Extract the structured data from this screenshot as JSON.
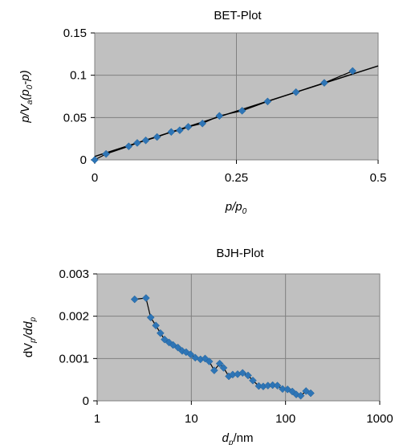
{
  "chart_data": [
    {
      "type": "scatter",
      "title": "BET-Plot",
      "xlabel": "p/p0",
      "ylabel": "p/Va(p0-p)",
      "xlim": [
        0,
        0.5
      ],
      "ylim": [
        0,
        0.15
      ],
      "xticks": [
        "0",
        "0.25",
        "0.5"
      ],
      "yticks": [
        "0",
        "0.05",
        "0.1",
        "0.15"
      ],
      "grid": true,
      "background": "#c0c0c0",
      "marker_color": "#2e75b6",
      "series": [
        {
          "x": [
            0.0,
            0.02,
            0.06,
            0.075,
            0.09,
            0.11,
            0.135,
            0.15,
            0.165,
            0.19,
            0.22,
            0.26,
            0.305,
            0.355,
            0.405,
            0.455
          ],
          "y": [
            0.0,
            0.007,
            0.016,
            0.02,
            0.023,
            0.027,
            0.033,
            0.035,
            0.039,
            0.043,
            0.052,
            0.058,
            0.069,
            0.08,
            0.091,
            0.105
          ]
        }
      ],
      "fit_line": {
        "x": [
          0,
          0.5
        ],
        "y": [
          0.004,
          0.111
        ]
      }
    },
    {
      "type": "line",
      "title": "BJH-Plot",
      "xlabel": "dp/nm",
      "ylabel": "dVp/ddp",
      "xscale": "log",
      "xlim": [
        1,
        1000
      ],
      "ylim": [
        0,
        0.003
      ],
      "xticks": [
        "1",
        "10",
        "100",
        "1000"
      ],
      "yticks": [
        "0",
        "0.001",
        "0.002",
        "0.003"
      ],
      "grid": true,
      "background": "#c0c0c0",
      "marker_color": "#2e75b6",
      "series": [
        {
          "x": [
            2.5,
            3.3,
            3.7,
            4.2,
            4.7,
            5.2,
            5.8,
            6.4,
            7.2,
            8.0,
            8.8,
            9.8,
            11,
            12.5,
            14,
            15.5,
            17.5,
            20,
            22,
            25,
            27.5,
            31,
            35,
            40,
            45,
            52,
            58,
            65,
            73,
            82,
            93,
            105,
            118,
            130,
            145,
            165,
            185
          ],
          "y": [
            0.0024,
            0.00243,
            0.00197,
            0.00178,
            0.0016,
            0.00145,
            0.00138,
            0.00132,
            0.00126,
            0.00118,
            0.00115,
            0.0011,
            0.00102,
            0.00098,
            0.001,
            0.00093,
            0.00072,
            0.00088,
            0.00078,
            0.00058,
            0.00062,
            0.00063,
            0.00066,
            0.0006,
            0.00048,
            0.00035,
            0.00034,
            0.00036,
            0.00037,
            0.00036,
            0.00028,
            0.00027,
            0.00022,
            0.00015,
            0.00012,
            0.00023,
            0.00018
          ]
        }
      ]
    }
  ]
}
